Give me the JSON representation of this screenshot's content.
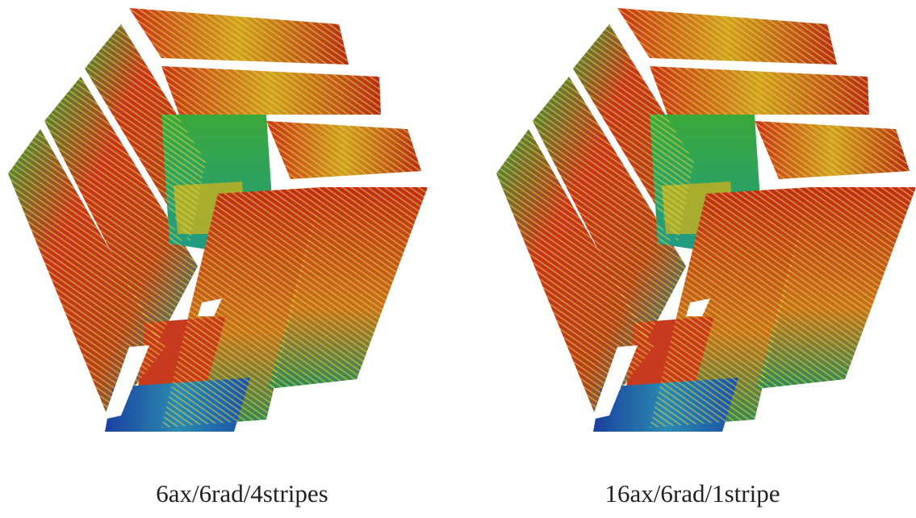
{
  "panels": [
    {
      "caption": "6ax/6rad/4stripes"
    },
    {
      "caption": "16ax/6rad/1stripe"
    }
  ]
}
